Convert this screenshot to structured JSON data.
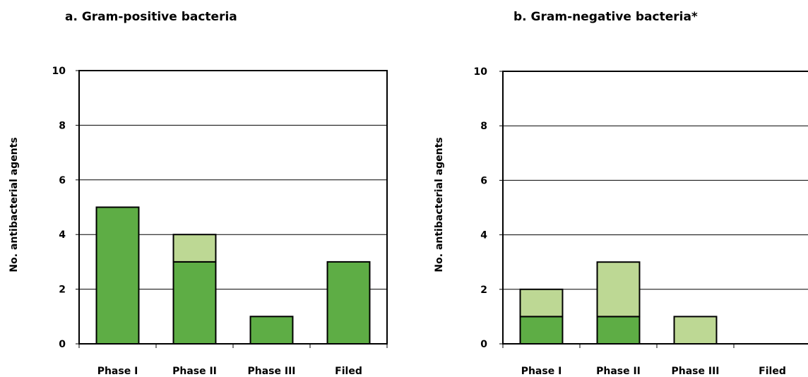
{
  "chart_data": [
    {
      "type": "bar",
      "stacked": true,
      "title": "a. Gram-positive bacteria",
      "xlabel": "",
      "ylabel": "No. antibacterial agents",
      "categories": [
        "Phase I",
        "Phase II",
        "Phase III",
        "Filed"
      ],
      "yticks": [
        "0",
        "2",
        "4",
        "6",
        "8",
        "10"
      ],
      "ylim": [
        0,
        10
      ],
      "grid": true,
      "series": [
        {
          "color": "#5ead45",
          "values": [
            5,
            3,
            1,
            3
          ]
        },
        {
          "color": "#bdd894",
          "values": [
            0,
            1,
            0,
            0
          ]
        }
      ]
    },
    {
      "type": "bar",
      "stacked": true,
      "title": "b. Gram-negative bacteria*",
      "xlabel": "",
      "ylabel": "No. antibacterial agents",
      "categories": [
        "Phase I",
        "Phase II",
        "Phase III",
        "Filed"
      ],
      "yticks": [
        "0",
        "2",
        "4",
        "6",
        "8",
        "10"
      ],
      "ylim": [
        0,
        10
      ],
      "grid": true,
      "series": [
        {
          "color": "#5ead45",
          "values": [
            1,
            1,
            0,
            0
          ]
        },
        {
          "color": "#bdd894",
          "values": [
            1,
            2,
            1,
            0
          ]
        }
      ]
    }
  ]
}
